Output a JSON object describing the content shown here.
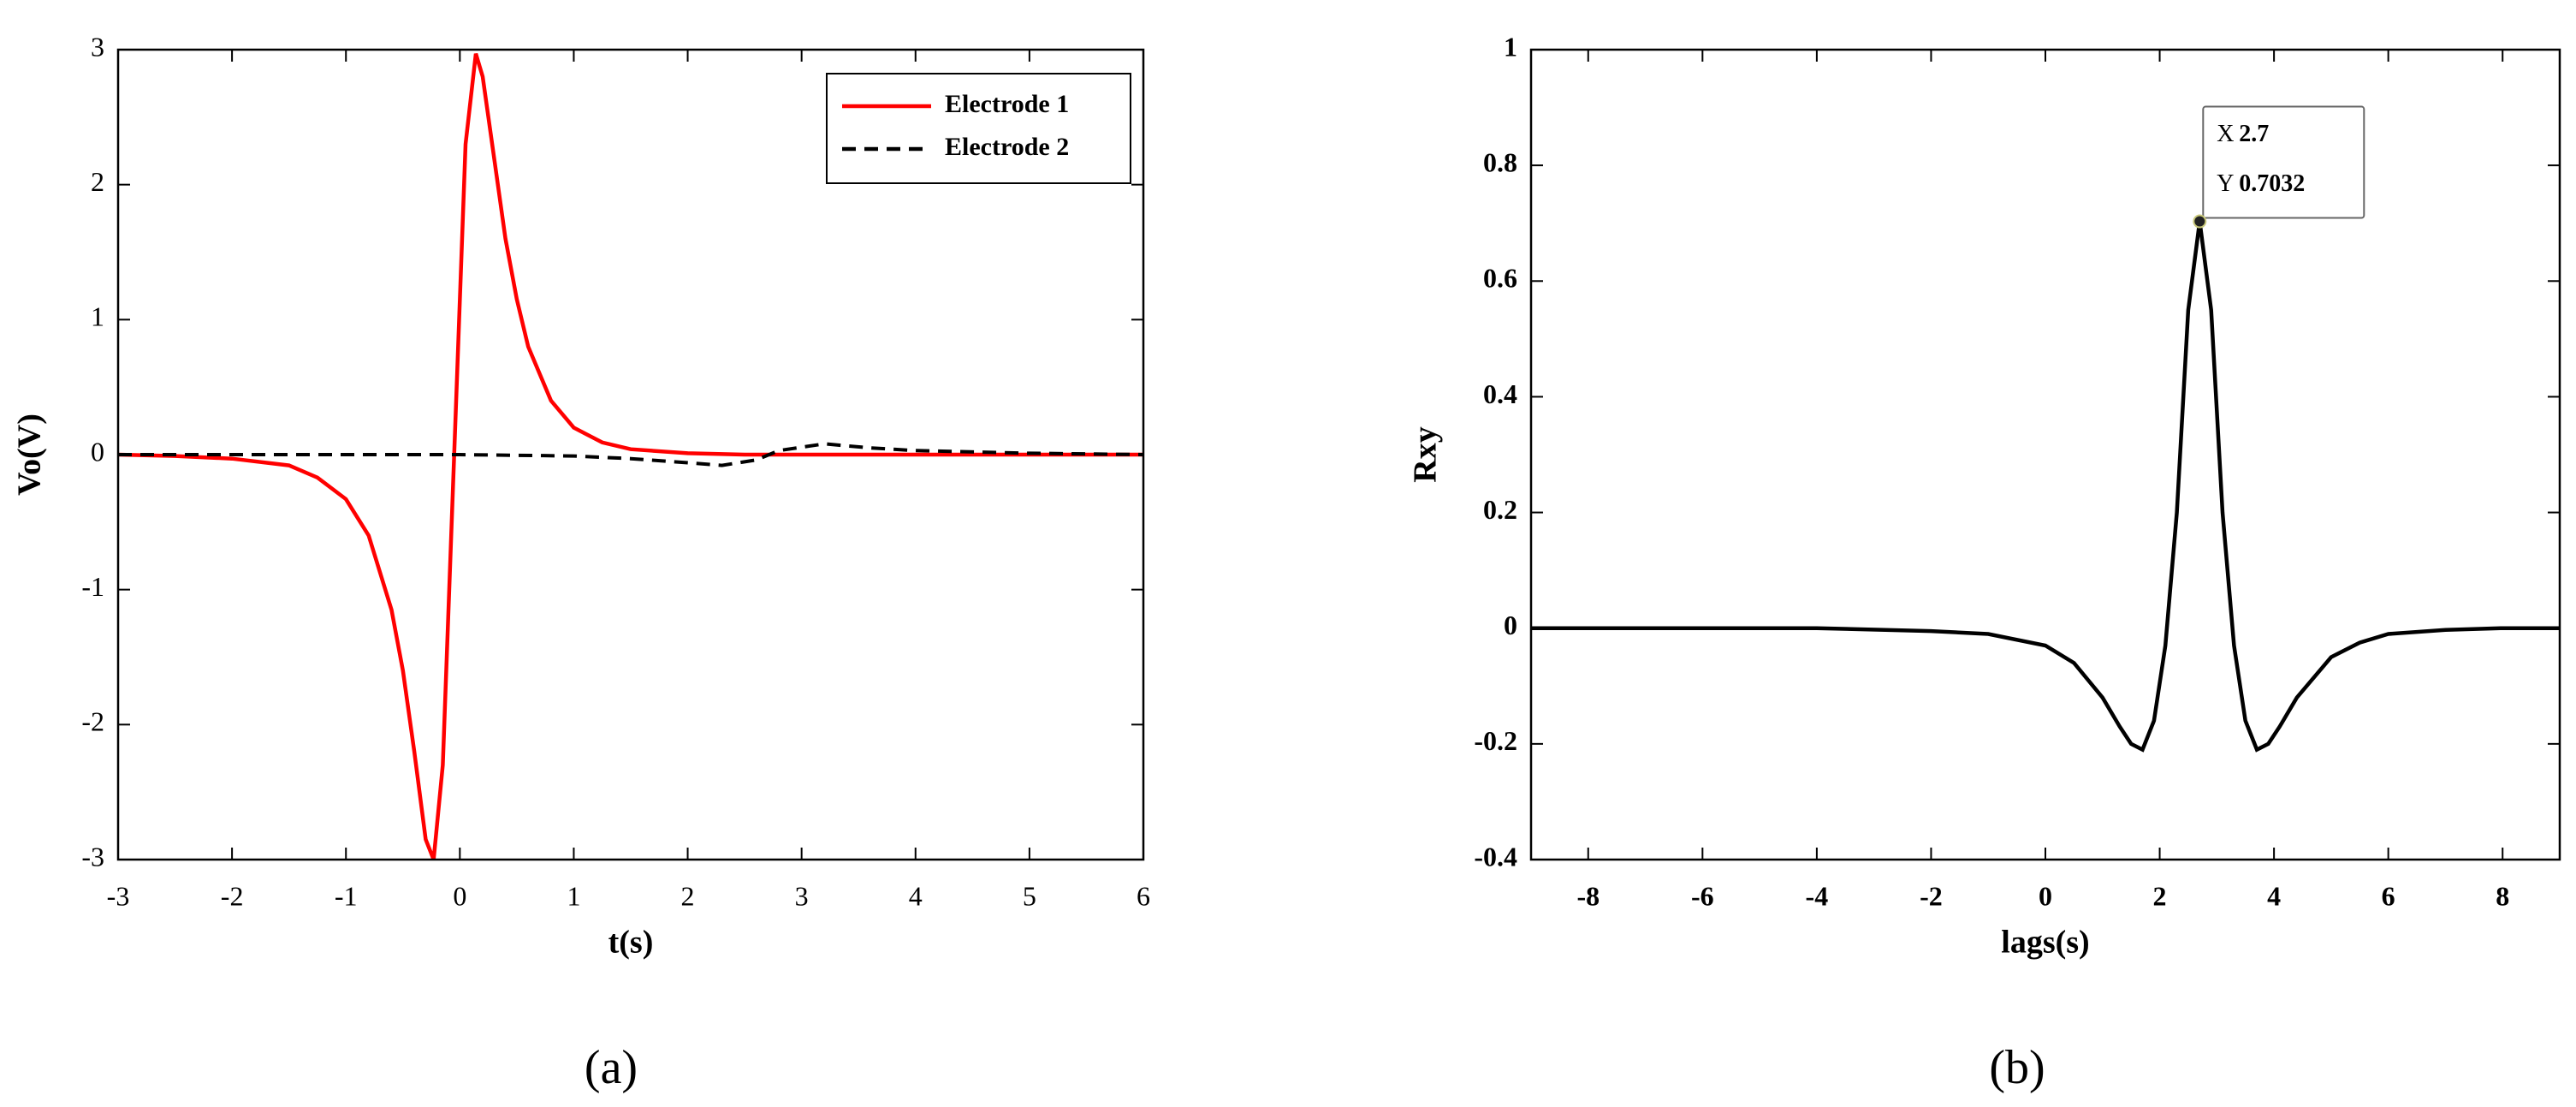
{
  "chart_data": [
    {
      "type": "line",
      "xlabel": "t(s)",
      "ylabel": "Vo(V)",
      "caption": "(a)",
      "xlim": [
        -3,
        6
      ],
      "ylim": [
        -3,
        3
      ],
      "xticks": [
        -3,
        -2,
        -1,
        0,
        1,
        2,
        3,
        4,
        5,
        6
      ],
      "yticks": [
        -3,
        -2,
        -1,
        0,
        1,
        2,
        3
      ],
      "legend": "upper right",
      "series": [
        {
          "name": "Electrode 1",
          "color": "#ff0000",
          "style": "solid",
          "x": [
            -3,
            -2.5,
            -2,
            -1.5,
            -1.25,
            -1,
            -0.8,
            -0.6,
            -0.5,
            -0.4,
            -0.3,
            -0.23,
            -0.15,
            -0.05,
            0.05,
            0.14,
            0.2,
            0.3,
            0.4,
            0.5,
            0.6,
            0.8,
            1,
            1.25,
            1.5,
            2,
            2.5,
            3,
            4,
            5,
            6
          ],
          "values": [
            0,
            -0.01,
            -0.03,
            -0.08,
            -0.17,
            -0.33,
            -0.6,
            -1.15,
            -1.6,
            -2.2,
            -2.85,
            -3,
            -2.3,
            0,
            2.3,
            2.97,
            2.8,
            2.2,
            1.6,
            1.15,
            0.8,
            0.4,
            0.2,
            0.09,
            0.04,
            0.01,
            0,
            0,
            0,
            0,
            0
          ]
        },
        {
          "name": "Electrode 2",
          "color": "#000000",
          "style": "dashed",
          "x": [
            -3,
            0,
            1,
            1.5,
            2,
            2.3,
            2.6,
            2.8,
            3.2,
            3.6,
            4,
            5,
            6
          ],
          "values": [
            0,
            0,
            -0.01,
            -0.03,
            -0.06,
            -0.08,
            -0.04,
            0.03,
            0.08,
            0.05,
            0.03,
            0.01,
            0
          ]
        }
      ]
    },
    {
      "type": "line",
      "xlabel": "lags(s)",
      "ylabel": "Rxy",
      "caption": "(b)",
      "xlim": [
        -9,
        9
      ],
      "ylim": [
        -0.4,
        1
      ],
      "xticks": [
        -8,
        -6,
        -4,
        -2,
        0,
        2,
        4,
        6,
        8
      ],
      "yticks": [
        -0.4,
        -0.2,
        0,
        0.2,
        0.4,
        0.6,
        0.8,
        1
      ],
      "series": [
        {
          "color": "#000000",
          "style": "solid",
          "x": [
            -9,
            -6,
            -4,
            -2,
            -1,
            0,
            0.5,
            1,
            1.3,
            1.5,
            1.7,
            1.9,
            2.1,
            2.3,
            2.5,
            2.7,
            2.9,
            3.1,
            3.3,
            3.5,
            3.7,
            3.9,
            4.1,
            4.4,
            5,
            5.5,
            6,
            7,
            8,
            9
          ],
          "values": [
            0,
            0,
            0,
            -0.005,
            -0.01,
            -0.03,
            -0.06,
            -0.12,
            -0.17,
            -0.2,
            -0.21,
            -0.16,
            -0.03,
            0.2,
            0.55,
            0.7032,
            0.55,
            0.2,
            -0.03,
            -0.16,
            -0.21,
            -0.2,
            -0.17,
            -0.12,
            -0.05,
            -0.025,
            -0.01,
            -0.003,
            0,
            0
          ]
        }
      ],
      "annotation": {
        "x_label": "X",
        "x": 2.7,
        "y_label": "Y",
        "y": 0.7032
      }
    }
  ]
}
